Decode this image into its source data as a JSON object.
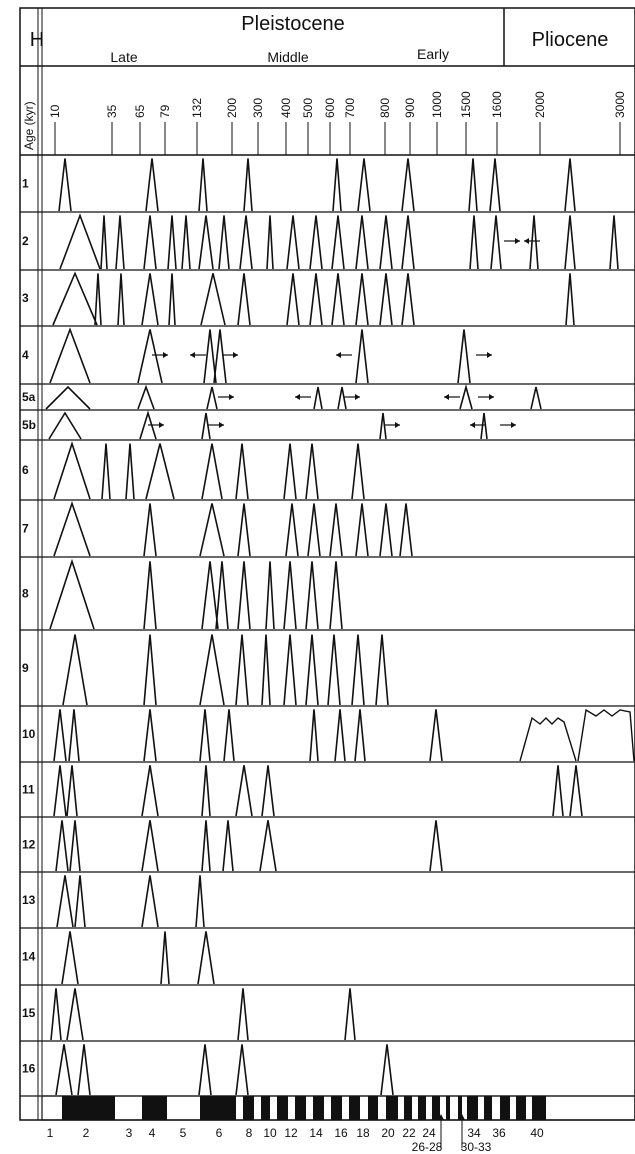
{
  "header": {
    "holocene_label": "H",
    "pleistocene_label": "Pleistocene",
    "pliocene_label": "Pliocene",
    "late_label": "Late",
    "middle_label": "Middle",
    "early_label": "Early",
    "age_axis_label": "Age (kyr)"
  },
  "age_ticks": [
    "10",
    "35",
    "65",
    "79",
    "132",
    "200",
    "300",
    "400",
    "500",
    "600",
    "700",
    "800",
    "900",
    "1000",
    "1500",
    "1600",
    "2000",
    "3000"
  ],
  "records": [
    {
      "label": "1"
    },
    {
      "label": "2"
    },
    {
      "label": "3"
    },
    {
      "label": "4"
    },
    {
      "label": "5a"
    },
    {
      "label": "5b"
    },
    {
      "label": "6"
    },
    {
      "label": "7"
    },
    {
      "label": "8"
    },
    {
      "label": "9"
    },
    {
      "label": "10"
    },
    {
      "label": "11"
    },
    {
      "label": "12"
    },
    {
      "label": "13"
    },
    {
      "label": "14"
    },
    {
      "label": "15"
    },
    {
      "label": "16"
    }
  ],
  "isotope_stages": {
    "labels_top": [
      "1",
      "2",
      "3",
      "4",
      "5",
      "6",
      "8",
      "10",
      "12",
      "14",
      "16",
      "18",
      "20",
      "22",
      "24",
      "34",
      "36",
      "40"
    ],
    "labels_bottom": [
      "26-28",
      "30-33"
    ]
  },
  "colors": {
    "ink": "#111111",
    "paper": "#ffffff",
    "rule": "#5b6aa6"
  }
}
